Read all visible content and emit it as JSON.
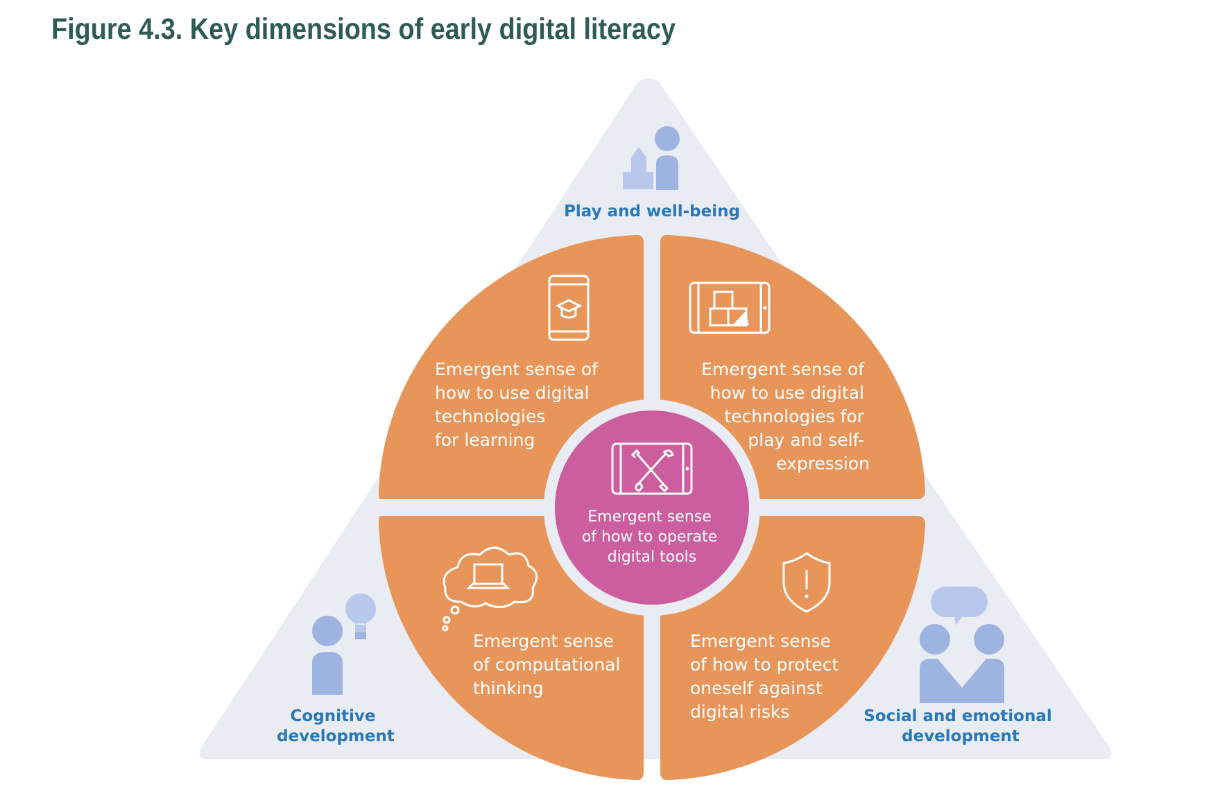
{
  "figure": {
    "title": "Figure 4.3. Key dimensions of early digital literacy"
  },
  "colors": {
    "triangle": "#e9ecf2",
    "quadrant": "#e8955a",
    "center": "#cc5d9e",
    "icon_blue": "#9db4e0",
    "label_blue": "#2878b8"
  },
  "corners": {
    "top": {
      "lines": [
        "Play and well-being"
      ],
      "icon": "child-with-blocks-icon"
    },
    "left": {
      "lines": [
        "Cognitive",
        "development"
      ],
      "icon": "person-with-lightbulb-icon"
    },
    "right": {
      "lines": [
        "Social and emotional",
        "development"
      ],
      "icon": "two-people-talking-icon"
    }
  },
  "quadrants": {
    "top_left": {
      "lines": [
        "Emergent sense of",
        "how to use digital",
        "technologies",
        "for learning"
      ],
      "icon": "tablet-graduation-cap-icon"
    },
    "top_right": {
      "lines": [
        "Emergent sense of",
        "how to use digital",
        "technologies for",
        "play and self-",
        "expression"
      ],
      "icon": "tablet-blocks-icon"
    },
    "bottom_left": {
      "lines": [
        "Emergent sense",
        "of computational",
        "thinking"
      ],
      "icon": "thought-cloud-laptop-icon"
    },
    "bottom_right": {
      "lines": [
        "Emergent sense",
        "of how to protect",
        "oneself against",
        "digital risks"
      ],
      "icon": "shield-warning-icon"
    }
  },
  "center": {
    "lines": [
      "Emergent sense",
      "of how to operate",
      "digital tools"
    ],
    "icon": "tablet-tools-icon"
  }
}
